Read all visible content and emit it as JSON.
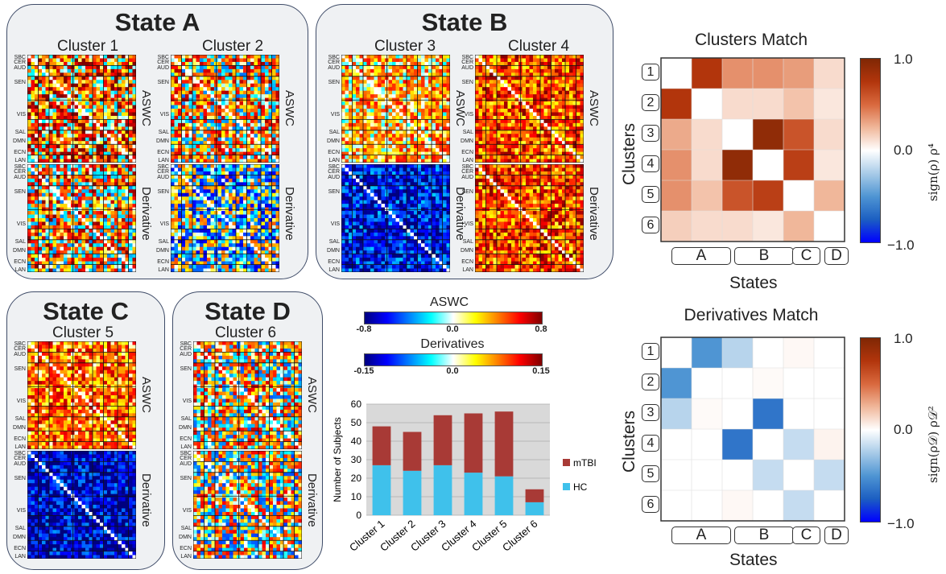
{
  "states": [
    {
      "title": "State A",
      "clusters": [
        {
          "label": "Cluster 1"
        },
        {
          "label": "Cluster 2"
        }
      ]
    },
    {
      "title": "State B",
      "clusters": [
        {
          "label": "Cluster 3"
        },
        {
          "label": "Cluster 4"
        }
      ]
    },
    {
      "title": "State C",
      "clusters": [
        {
          "label": "Cluster 5"
        }
      ]
    },
    {
      "title": "State D",
      "clusters": [
        {
          "label": "Cluster 6"
        }
      ]
    }
  ],
  "matrix_labels": {
    "rows": [
      "SBC",
      "CER",
      "AUD",
      "SEN",
      "VIS",
      "SAL",
      "DMN",
      "ECN",
      "LAN"
    ],
    "aswc": "ASWC",
    "derivative": "Derivative"
  },
  "colorbars": {
    "aswc": {
      "title": "ASWC",
      "min": "-0.8",
      "mid": "0.0",
      "max": "0.8"
    },
    "derivatives": {
      "title": "Derivatives",
      "min": "-0.15",
      "mid": "0.0",
      "max": "0.15"
    }
  },
  "match_panels": [
    {
      "title": "Clusters Match",
      "ylabel": "Clusters",
      "xlabel": "States",
      "cbar_label": "sign(ρ) ρ⁴",
      "cbar_ticks": [
        "1.0",
        "0.0",
        "−1.0"
      ]
    },
    {
      "title": "Derivatives Match",
      "ylabel": "Clusters",
      "xlabel": "States",
      "cbar_label": "sign(ρ𝒟) ρ𝒟²",
      "cbar_ticks": [
        "1.0",
        "0.0",
        "−1.0"
      ]
    }
  ],
  "match_row_labels": [
    "1",
    "2",
    "3",
    "4",
    "5",
    "6"
  ],
  "match_col_labels": [
    "A",
    "B",
    "C",
    "D"
  ],
  "colors": {
    "hc": "#3fc1eb",
    "mtbi": "#a83a36",
    "box_border": "#3f4c68",
    "box_bg": "#eff1f3"
  },
  "chart_data": [
    {
      "type": "bar",
      "categories": [
        "Cluster 1",
        "Cluster 2",
        "Cluster 3",
        "Cluster 4",
        "Cluster 5",
        "Cluster 6"
      ],
      "series": [
        {
          "name": "HC",
          "values": [
            27,
            24,
            27,
            23,
            21,
            7
          ]
        },
        {
          "name": "mTBI",
          "values": [
            21,
            21,
            27,
            32,
            35,
            7
          ]
        }
      ],
      "stacked": true,
      "ylabel": "Number of Subjects",
      "ylim": [
        0,
        60
      ],
      "yticks": [
        0,
        10,
        20,
        30,
        40,
        50,
        60
      ],
      "legend": "right",
      "grid": true
    },
    {
      "type": "heatmap",
      "title": "Clusters Match",
      "rows": [
        "1",
        "2",
        "3",
        "4",
        "5",
        "6"
      ],
      "row_colors_by_column": [
        [
          0.0,
          0.85,
          0.45,
          0.45,
          0.4,
          0.15
        ],
        [
          0.85,
          0.0,
          0.15,
          0.15,
          0.25,
          0.1
        ],
        [
          0.35,
          0.15,
          0.0,
          0.95,
          0.7,
          0.15
        ],
        [
          0.45,
          0.15,
          0.95,
          0.0,
          0.8,
          0.1
        ],
        [
          0.45,
          0.25,
          0.7,
          0.8,
          0.0,
          0.3
        ],
        [
          0.2,
          0.15,
          0.15,
          0.1,
          0.3,
          0.0
        ]
      ],
      "range": [
        -1.0,
        1.0
      ]
    },
    {
      "type": "heatmap",
      "title": "Derivatives Match",
      "rows": [
        "1",
        "2",
        "3",
        "4",
        "5",
        "6"
      ],
      "values": [
        [
          0.0,
          -0.6,
          -0.25,
          0.0,
          0.03,
          0.0
        ],
        [
          -0.6,
          0.0,
          0.0,
          0.02,
          0.0,
          0.0
        ],
        [
          -0.25,
          0.02,
          0.0,
          -0.75,
          0.0,
          0.0
        ],
        [
          0.0,
          0.0,
          -0.75,
          0.0,
          -0.2,
          0.05
        ],
        [
          0.0,
          0.0,
          0.0,
          -0.2,
          0.0,
          -0.2
        ],
        [
          0.0,
          0.0,
          0.03,
          0.0,
          -0.2,
          0.0
        ]
      ],
      "range": [
        -1.0,
        1.0
      ]
    }
  ]
}
